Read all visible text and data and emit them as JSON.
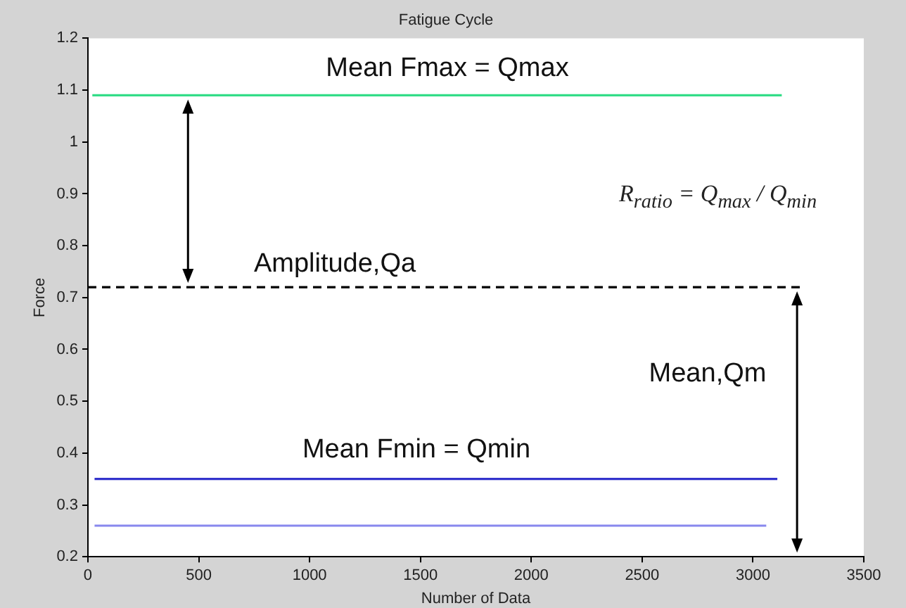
{
  "chart_data": {
    "type": "line",
    "title": "Fatigue Cycle",
    "xlabel": "Number of Data",
    "ylabel": "Force",
    "xlim": [
      0,
      3500
    ],
    "xticks": [
      0,
      500,
      1000,
      1500,
      2000,
      2500,
      3000,
      3500
    ],
    "ylim": [
      0.2,
      1.2
    ],
    "yticks": [
      0.2,
      0.3,
      0.4,
      0.5,
      0.6,
      0.7,
      0.8,
      0.9,
      1,
      1.1,
      1.2
    ],
    "grid": false,
    "legend": false,
    "marker": "none",
    "series": [
      {
        "color": "#33dd88",
        "x": [
          20,
          3130
        ],
        "values": [
          1.09,
          1.09
        ]
      },
      {
        "color": "#000000",
        "x": [
          0,
          3230
        ],
        "values": [
          0.72,
          0.72
        ],
        "line_style": "dashed"
      },
      {
        "color": "#3333cc",
        "x": [
          30,
          3110
        ],
        "values": [
          0.35,
          0.35
        ]
      },
      {
        "color": "#8888ee",
        "x": [
          30,
          3060
        ],
        "values": [
          0.26,
          0.26
        ]
      }
    ],
    "annotations": [
      "Mean Fmax = Qmax",
      "Amplitude,Qa",
      "Mean,Qm",
      "Mean Fmin = Qmin",
      "R$_{ratio}$ = Q$_{max}$ / Q$_{min}$"
    ]
  }
}
